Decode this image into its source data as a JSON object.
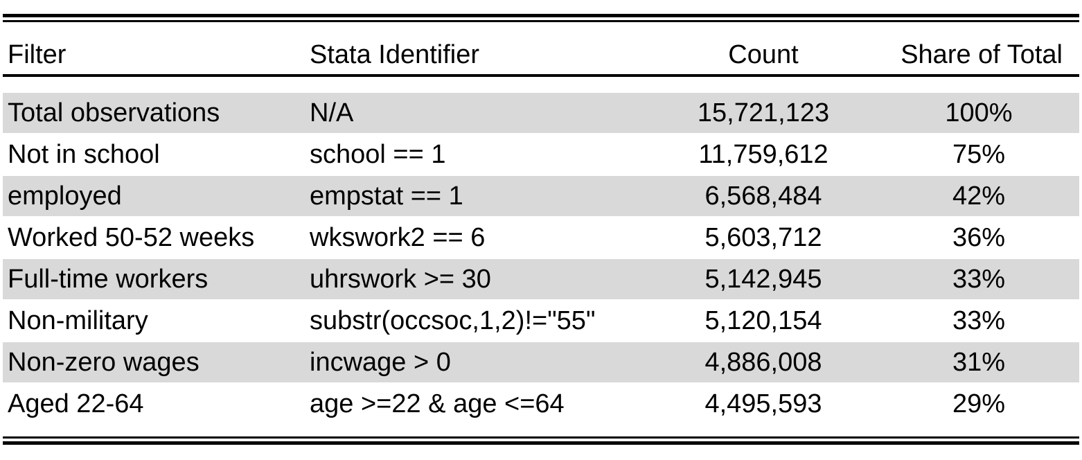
{
  "table": {
    "headers": [
      "Filter",
      "Stata Identifier",
      "Count",
      "Share of Total"
    ],
    "row_shading": "#d9d9d9",
    "rows": [
      {
        "filter": "Total observations",
        "identifier": "N/A",
        "count": "15,721,123",
        "share": "100%",
        "shaded": true
      },
      {
        "filter": "Not in school",
        "identifier": "school == 1",
        "count": "11,759,612",
        "share": "75%",
        "shaded": false
      },
      {
        "filter": "employed",
        "identifier": "empstat == 1",
        "count": "6,568,484",
        "share": "42%",
        "shaded": true
      },
      {
        "filter": "Worked 50-52 weeks",
        "identifier": "wkswork2 == 6",
        "count": "5,603,712",
        "share": "36%",
        "shaded": false
      },
      {
        "filter": "Full-time workers",
        "identifier": "uhrswork >= 30",
        "count": "5,142,945",
        "share": "33%",
        "shaded": true
      },
      {
        "filter": "Non-military",
        "identifier": "substr(occsoc,1,2)!=\"55\"",
        "count": "5,120,154",
        "share": "33%",
        "shaded": false
      },
      {
        "filter": "Non-zero wages",
        "identifier": "incwage > 0",
        "count": "4,886,008",
        "share": "31%",
        "shaded": true
      },
      {
        "filter": "Aged 22-64",
        "identifier": "age >=22 & age <=64",
        "count": "4,495,593",
        "share": "29%",
        "shaded": false
      }
    ]
  }
}
